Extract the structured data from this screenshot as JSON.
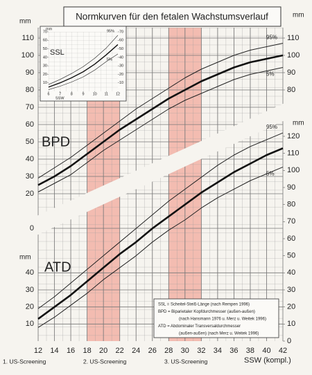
{
  "title": "Normkurven für den fetalen Wachstumsverlauf",
  "notes": [
    "SSL = Scheitel-Steiß-Länge (nach Rempen 1996)",
    "BPD = Biparietaler Kopfdurchmesser (außen-außen)",
    "(nach Hansmann 1976 u. Merz u. Weitek 1996)",
    "ATD = Abdominaler Transversaldurchmesser",
    "(außen-außen) (nach Merz u. Weitek 1996)"
  ],
  "screening": [
    {
      "label": "1. US-Screening"
    },
    {
      "label": "2. US-Screening",
      "from": 18,
      "to": 22
    },
    {
      "label": "3. US-Screening",
      "from": 28,
      "to": 32
    }
  ],
  "chart_data": [
    {
      "type": "line",
      "label": "BPD",
      "unit": "mm",
      "x": [
        12,
        14,
        16,
        18,
        20,
        22,
        24,
        26,
        28,
        30,
        32,
        34,
        36,
        38,
        40,
        42
      ],
      "xlim": [
        12,
        42
      ],
      "ylim": [
        0,
        110
      ],
      "yticks": [
        0,
        20,
        30,
        40,
        50,
        60,
        70,
        80,
        90,
        100,
        110
      ],
      "y2ticks": [
        80,
        90,
        100,
        110
      ],
      "series": [
        {
          "name": "95%",
          "color": "#222222",
          "values": [
            29,
            35,
            41,
            48,
            55,
            62,
            69,
            75,
            81,
            87,
            92,
            96,
            100,
            103,
            105,
            107
          ]
        },
        {
          "color": "#111111",
          "values": [
            25,
            30,
            36,
            43,
            50,
            57,
            63,
            69,
            75,
            80,
            85,
            89,
            93,
            96,
            98,
            100
          ]
        },
        {
          "name": "5%",
          "color": "#222222",
          "values": [
            21,
            26,
            31,
            38,
            45,
            51,
            57,
            63,
            69,
            74,
            78,
            82,
            86,
            89,
            91,
            93
          ]
        }
      ]
    },
    {
      "type": "line",
      "label": "ATD",
      "unit": "mm",
      "xlabel": "SSW (kompl.)",
      "x": [
        12,
        14,
        16,
        18,
        20,
        22,
        24,
        26,
        28,
        30,
        32,
        34,
        36,
        38,
        40,
        42
      ],
      "xlim": [
        12,
        42
      ],
      "xticks": [
        12,
        14,
        16,
        18,
        20,
        22,
        24,
        26,
        28,
        30,
        32,
        34,
        36,
        38,
        40,
        42
      ],
      "ylim": [
        0,
        120
      ],
      "yticks": [
        10,
        20,
        30,
        40
      ],
      "y2ticks": [
        0,
        10,
        20,
        30,
        40,
        50,
        60,
        70,
        80,
        90,
        100,
        110,
        120
      ],
      "series": [
        {
          "name": "95%",
          "color": "#222222",
          "values": [
            19,
            26,
            34,
            42,
            50,
            58,
            66,
            74,
            82,
            89,
            96,
            103,
            109,
            114,
            118,
            122
          ]
        },
        {
          "color": "#111111",
          "values": [
            13,
            20,
            27,
            35,
            43,
            51,
            58,
            66,
            73,
            80,
            87,
            93,
            99,
            104,
            109,
            113
          ]
        },
        {
          "name": "5%",
          "color": "#222222",
          "values": [
            8,
            14,
            21,
            28,
            36,
            43,
            50,
            58,
            65,
            71,
            78,
            84,
            89,
            94,
            98,
            102
          ]
        }
      ]
    },
    {
      "type": "line",
      "label": "SSL",
      "unit": "mm",
      "xlabel": "SSW",
      "x": [
        6,
        7,
        8,
        9,
        10,
        11,
        12
      ],
      "xlim": [
        6,
        12
      ],
      "xticks": [
        6,
        7,
        8,
        9,
        10,
        11,
        12
      ],
      "ylim": [
        0,
        70
      ],
      "yticks": [
        10,
        20,
        30,
        40,
        50,
        60,
        70
      ],
      "y2ticks": [
        10,
        20,
        30,
        40,
        50,
        60,
        70
      ],
      "series": [
        {
          "name": "95%",
          "color": "#222222",
          "values": [
            8,
            14,
            21,
            29,
            39,
            51,
            66
          ]
        },
        {
          "color": "#111111",
          "values": [
            5,
            10,
            16,
            23,
            32,
            43,
            55
          ]
        },
        {
          "name": "5%",
          "color": "#222222",
          "values": [
            2,
            6,
            11,
            17,
            25,
            35,
            44
          ]
        }
      ]
    }
  ]
}
